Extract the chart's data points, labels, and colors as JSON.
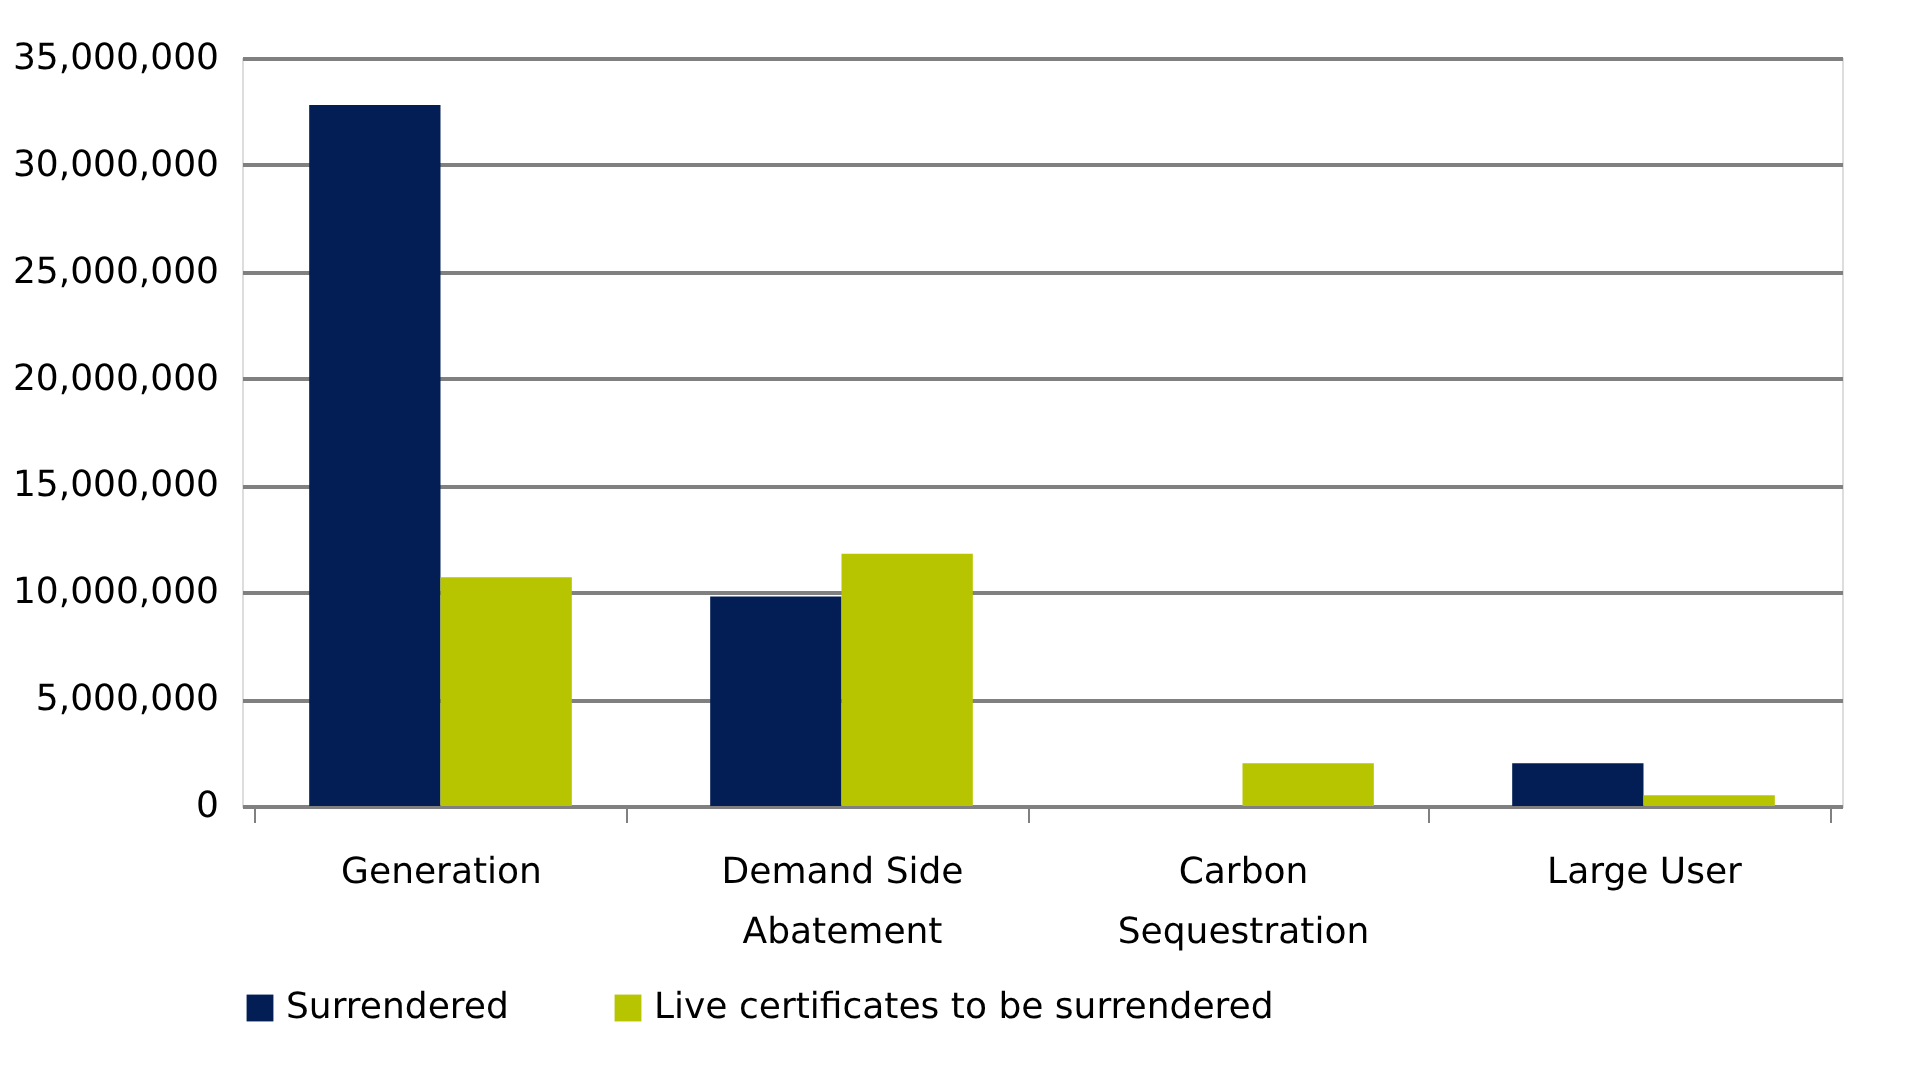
{
  "chart_data": {
    "type": "bar",
    "categories": [
      "Generation",
      "Demand Side Abatement",
      "Carbon Sequestration",
      "Large User"
    ],
    "series": [
      {
        "name": "Surrendered",
        "color": "#021e54",
        "values": [
          32800000,
          9800000,
          0,
          2000000
        ]
      },
      {
        "name": "Live certificates to be surrendered",
        "color": "#b7c400",
        "values": [
          10700000,
          11800000,
          2000000,
          500000
        ]
      }
    ],
    "ylim": [
      0,
      35000000
    ],
    "yticks": [
      0,
      {
        "value": 5000000,
        "label": "5,000,000"
      },
      {
        "value": 10000000,
        "label": "10,000,000"
      },
      {
        "value": 15000000,
        "label": "15,000,000"
      },
      {
        "value": 20000000,
        "label": "20,000,000"
      },
      {
        "value": 25000000,
        "label": "25,000,000"
      },
      {
        "value": 30000000,
        "label": "30,000,000"
      },
      {
        "value": 35000000,
        "label": "35,000,000"
      }
    ],
    "grid": "y",
    "legend": "bottom"
  }
}
